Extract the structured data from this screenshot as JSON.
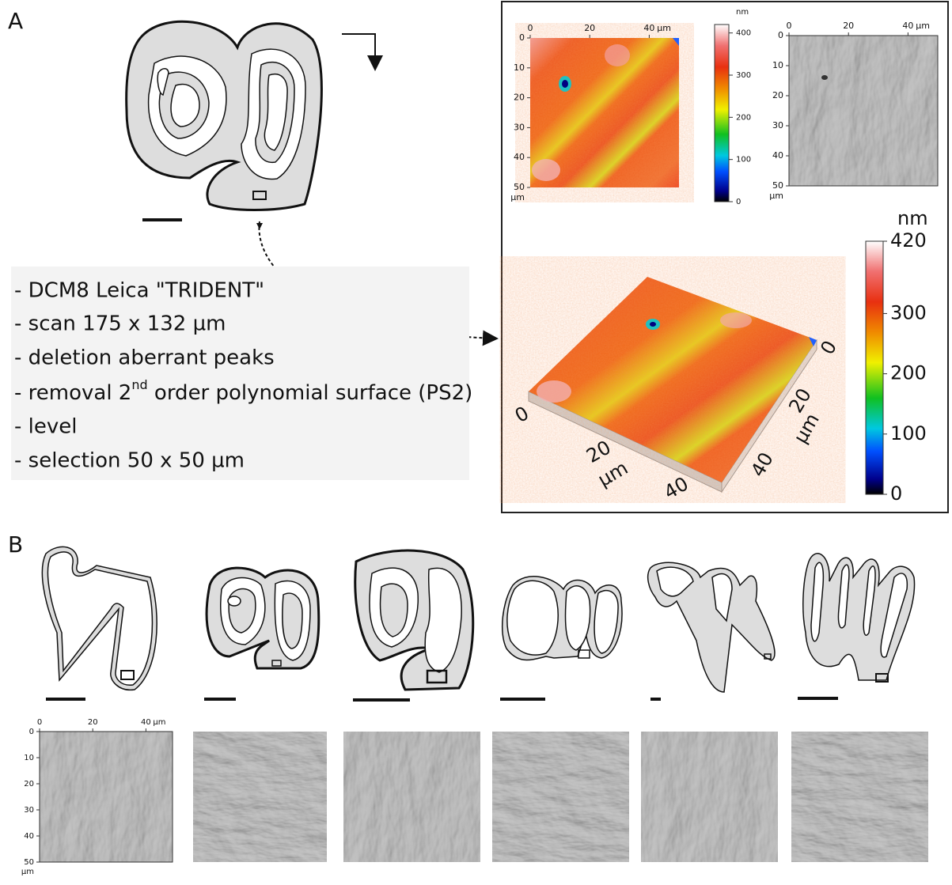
{
  "panel_a": {
    "label": "A",
    "steps": [
      "- DCM8 Leica \"TRIDENT\"",
      "- scan 175 x 132 µm",
      "- deletion aberrant peaks",
      {
        "before": "- removal 2",
        "sup": "nd",
        "after": " order polynomial surface (PS2)"
      },
      "- level",
      "- selection 50 x 50 µm"
    ],
    "height_map": {
      "x_ticks": [
        0,
        20,
        40
      ],
      "x_unit": "µm",
      "y_ticks": [
        0,
        10,
        20,
        30,
        40,
        50
      ],
      "y_unit": "µm"
    },
    "colorbar": {
      "unit": "nm",
      "ticks": [
        0,
        100,
        200,
        300,
        400
      ]
    },
    "shaded_map": {
      "x_ticks": [
        0,
        20,
        40
      ],
      "x_unit": "µm",
      "y_ticks": [
        0,
        10,
        20,
        30,
        40,
        50
      ],
      "y_unit": "µm"
    },
    "view_3d": {
      "x_ticks": [
        0,
        20,
        40
      ],
      "x_unit": "µm",
      "y_ticks": [
        0,
        20,
        40
      ],
      "y_unit": "µm"
    },
    "colorbar_3d": {
      "unit": "nm",
      "ticks": [
        0,
        100,
        200,
        300,
        420
      ]
    }
  },
  "panel_b": {
    "label": "B",
    "map_axes": {
      "x_ticks": [
        0,
        20,
        40
      ],
      "x_unit": "µm",
      "y_ticks": [
        0,
        10,
        20,
        30,
        40,
        50
      ],
      "y_unit": "µm"
    }
  }
}
